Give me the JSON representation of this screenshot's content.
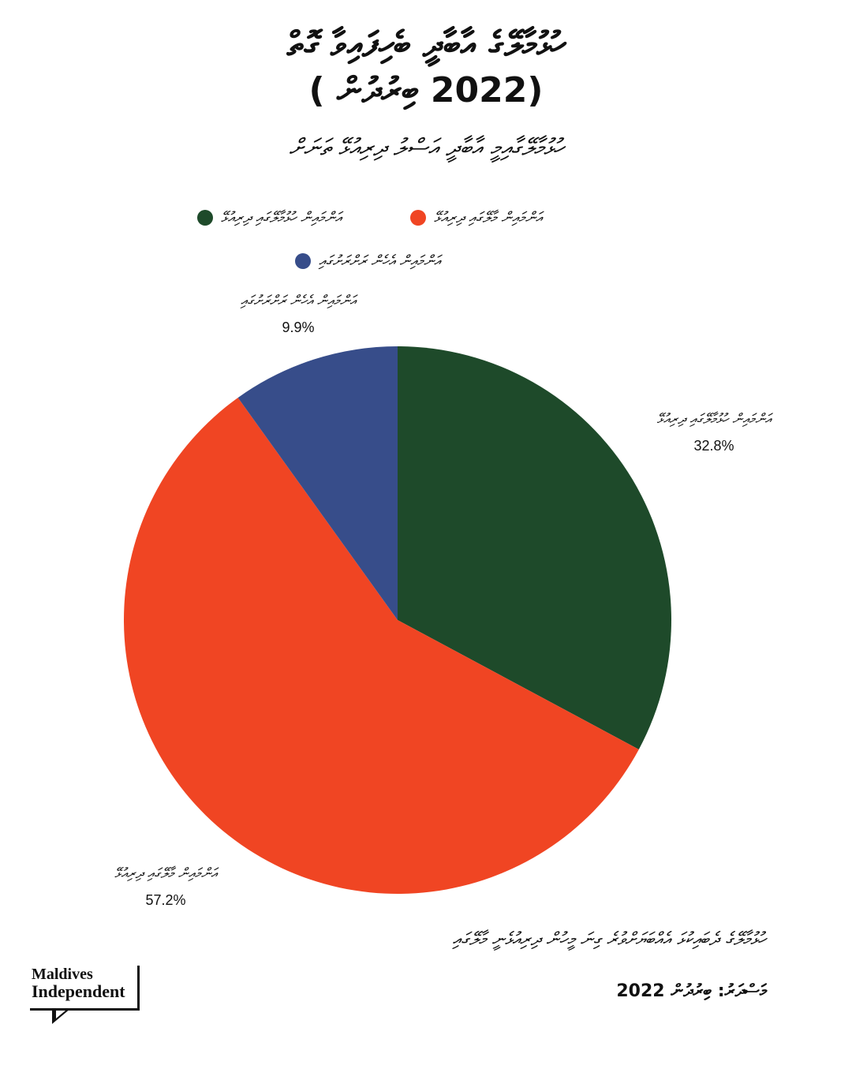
{
  "title": {
    "line1": "ހުޅުމާލޭގެ އާބާދީ ބެހިފައިވާ ގޮތް",
    "line2": "(2022 ބިރުދުން )"
  },
  "subtitle": "ހުޅުމާލޭގާއިމީ އާބާދީ އަސްލު ދިރިއުޅޭ ތަނަށް",
  "legend": [
    {
      "label": "އަންމައިން މާލޭގައި ދިރިއުޅޭ",
      "color": "#f04523"
    },
    {
      "label": "އަންމައިން ހުޅުމާލޭގައި ދިރިއުޅޭ",
      "color": "#1e4a2a"
    },
    {
      "label": "އަންމައިން އެހެން ރަށްރަށުގައި",
      "color": "#374d8a"
    }
  ],
  "chart_data": {
    "type": "pie",
    "title": "ހުޅުމާލޭގެ އާބާދީ ބެހިފައިވާ ގޮތް (2022 ބިރުދުން )",
    "slices": [
      {
        "label": "އަންމައިން ހުޅުމާލޭގައި ދިރިއުޅޭ",
        "value": 32.8,
        "pct_label": "32.8%",
        "color": "#1e4a2a"
      },
      {
        "label": "އަންމައިން މާލޭގައި ދިރިއުޅޭ",
        "value": 57.2,
        "pct_label": "57.2%",
        "color": "#f04523"
      },
      {
        "label": "އަންމައިން އެހެން ރަށްރަށުގައި",
        "value": 9.9,
        "pct_label": "9.9%",
        "color": "#374d8a"
      }
    ],
    "start_angle": "12 o'clock",
    "direction": "clockwise",
    "legend_position": "top"
  },
  "footnote": "ހުޅުމާލޭގެ ދެބައިކުޅަ އެއްބަޔަށްވުރެ ގިނަ މީހުން ދިރިއުޅެނީ މާލޭގައި",
  "source": "މަސްދަރު: ބިރުދުން 2022",
  "logo": {
    "line1": "Maldives",
    "line2": "Independent"
  }
}
